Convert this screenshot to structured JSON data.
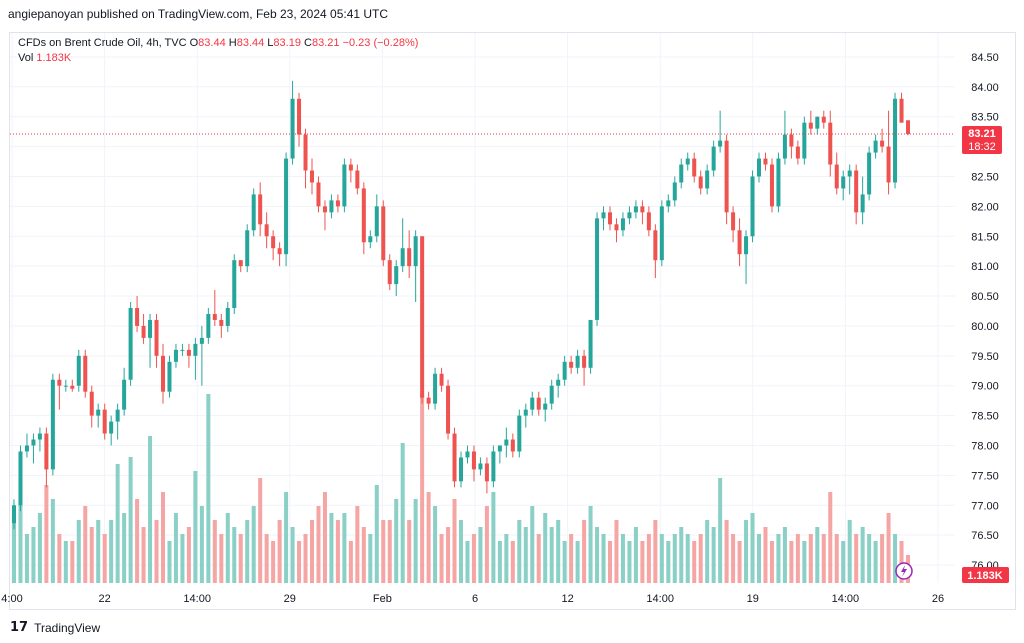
{
  "header": {
    "published_line": "angiepanoyan published on TradingView.com, Feb 23, 2024 05:41 UTC"
  },
  "legend": {
    "symbol": "CFDs on Brent Crude Oil, 4h, TVC",
    "o_label": "O",
    "o_value": "83.44",
    "h_label": "H",
    "h_value": "83.44",
    "l_label": "L",
    "l_value": "83.19",
    "c_label": "C",
    "c_value": "83.21",
    "change": "−0.23 (−0.28%)",
    "vol_label": "Vol",
    "vol_value": "1.183K"
  },
  "price_badge": {
    "price": "83.21",
    "countdown": "18:32"
  },
  "volume_badge": "1.183K",
  "footer": {
    "brand": "TradingView",
    "logo_text": "17"
  },
  "colors": {
    "up": "#26a69a",
    "down": "#ef5350",
    "volume_up": "#8ad0c6",
    "volume_down": "#f5a5a3",
    "badge": "#f23645",
    "lightning": "#9c27b0"
  },
  "chart_data": {
    "type": "candlestick",
    "title": "CFDs on Brent Crude Oil, 4h, TVC",
    "y_ticks": [
      "84.50",
      "84.00",
      "83.50",
      "83.00",
      "82.50",
      "82.00",
      "81.50",
      "81.00",
      "80.50",
      "80.00",
      "79.50",
      "79.00",
      "78.50",
      "78.00",
      "77.50",
      "77.00",
      "76.50",
      "76.00"
    ],
    "ylim": [
      75.7,
      84.9
    ],
    "x_ticks": [
      "4:00",
      "22",
      "14:00",
      "29",
      "Feb",
      "6",
      "12",
      "14:00",
      "19",
      "14:00",
      "26"
    ],
    "last_price": 83.21,
    "candles": [
      [
        76.7,
        77.1,
        76.6,
        77.0,
        0.45
      ],
      [
        77.0,
        78.0,
        76.9,
        77.9,
        0.75
      ],
      [
        77.9,
        78.2,
        77.8,
        78.0,
        0.35
      ],
      [
        78.0,
        78.2,
        77.7,
        78.1,
        0.4
      ],
      [
        78.1,
        78.3,
        77.9,
        78.2,
        0.5
      ],
      [
        78.2,
        78.3,
        77.3,
        77.6,
        0.7
      ],
      [
        77.6,
        79.2,
        77.5,
        79.1,
        0.6
      ],
      [
        79.1,
        79.2,
        78.6,
        79.0,
        0.35
      ],
      [
        79.0,
        79.1,
        78.9,
        79.0,
        0.3
      ],
      [
        79.0,
        79.1,
        78.9,
        78.95,
        0.3
      ],
      [
        79.0,
        79.6,
        78.9,
        79.5,
        0.45
      ],
      [
        79.5,
        79.6,
        78.8,
        78.9,
        0.55
      ],
      [
        78.9,
        79.0,
        78.3,
        78.5,
        0.4
      ],
      [
        78.5,
        78.7,
        78.3,
        78.6,
        0.45
      ],
      [
        78.6,
        78.7,
        78.1,
        78.2,
        0.35
      ],
      [
        78.2,
        78.5,
        78.0,
        78.4,
        0.45
      ],
      [
        78.4,
        78.7,
        78.1,
        78.6,
        0.85
      ],
      [
        78.6,
        79.3,
        78.5,
        79.1,
        0.5
      ],
      [
        79.1,
        80.4,
        79.0,
        80.3,
        0.9
      ],
      [
        80.3,
        80.5,
        79.9,
        80.0,
        0.6
      ],
      [
        80.0,
        80.2,
        79.7,
        79.8,
        0.4
      ],
      [
        79.8,
        80.2,
        79.3,
        80.1,
        1.05
      ],
      [
        80.1,
        80.2,
        79.3,
        79.5,
        0.45
      ],
      [
        79.5,
        79.7,
        78.7,
        78.9,
        0.65
      ],
      [
        78.9,
        79.5,
        78.8,
        79.4,
        0.3
      ],
      [
        79.4,
        79.7,
        79.3,
        79.6,
        0.5
      ],
      [
        79.6,
        79.7,
        79.5,
        79.6,
        0.35
      ],
      [
        79.6,
        79.7,
        79.3,
        79.5,
        0.4
      ],
      [
        79.5,
        79.8,
        79.1,
        79.7,
        0.8
      ],
      [
        79.7,
        80.0,
        79.0,
        79.8,
        0.55
      ],
      [
        79.8,
        80.3,
        79.7,
        80.2,
        1.35
      ],
      [
        80.2,
        80.6,
        80.0,
        80.1,
        0.45
      ],
      [
        80.1,
        80.2,
        79.8,
        80.0,
        0.35
      ],
      [
        80.0,
        80.4,
        79.9,
        80.3,
        0.5
      ],
      [
        80.3,
        81.2,
        80.2,
        81.1,
        0.4
      ],
      [
        81.1,
        81.1,
        80.9,
        81.0,
        0.35
      ],
      [
        81.0,
        81.7,
        80.9,
        81.6,
        0.45
      ],
      [
        81.6,
        82.3,
        81.5,
        82.2,
        0.55
      ],
      [
        82.2,
        82.4,
        81.5,
        81.7,
        0.75
      ],
      [
        81.7,
        81.9,
        81.3,
        81.5,
        0.35
      ],
      [
        81.5,
        81.6,
        81.1,
        81.3,
        0.3
      ],
      [
        81.3,
        81.4,
        81.0,
        81.2,
        0.45
      ],
      [
        81.2,
        82.9,
        81.0,
        82.8,
        0.65
      ],
      [
        82.8,
        84.1,
        82.7,
        83.8,
        0.4
      ],
      [
        83.8,
        83.9,
        83.0,
        83.2,
        0.3
      ],
      [
        83.2,
        83.3,
        82.3,
        82.6,
        0.35
      ],
      [
        82.6,
        82.8,
        82.2,
        82.4,
        0.45
      ],
      [
        82.4,
        82.5,
        81.9,
        82.0,
        0.55
      ],
      [
        82.0,
        82.1,
        81.6,
        81.9,
        0.65
      ],
      [
        81.9,
        82.2,
        81.8,
        82.1,
        0.5
      ],
      [
        82.1,
        82.2,
        81.9,
        82.0,
        0.45
      ],
      [
        82.0,
        82.8,
        81.9,
        82.7,
        0.5
      ],
      [
        82.7,
        82.8,
        82.4,
        82.6,
        0.3
      ],
      [
        82.6,
        82.7,
        82.2,
        82.3,
        0.55
      ],
      [
        82.3,
        82.4,
        81.2,
        81.4,
        0.4
      ],
      [
        81.4,
        81.6,
        81.3,
        81.5,
        0.35
      ],
      [
        81.5,
        82.2,
        81.4,
        82.0,
        0.7
      ],
      [
        82.0,
        82.1,
        81.0,
        81.1,
        0.45
      ],
      [
        81.1,
        81.2,
        80.6,
        80.7,
        0.45
      ],
      [
        80.7,
        81.1,
        80.5,
        81.0,
        0.6
      ],
      [
        81.0,
        81.8,
        80.9,
        81.3,
        1.0
      ],
      [
        81.3,
        81.6,
        80.8,
        81.0,
        0.45
      ],
      [
        81.0,
        81.6,
        80.4,
        81.5,
        0.6
      ],
      [
        81.5,
        81.5,
        78.7,
        78.8,
        1.35
      ],
      [
        78.8,
        78.9,
        78.6,
        78.7,
        0.65
      ],
      [
        78.7,
        79.3,
        78.6,
        79.2,
        0.55
      ],
      [
        79.2,
        79.3,
        78.9,
        79.0,
        0.35
      ],
      [
        79.0,
        79.1,
        78.1,
        78.2,
        0.4
      ],
      [
        78.2,
        78.3,
        77.3,
        77.4,
        0.6
      ],
      [
        77.4,
        77.9,
        77.3,
        77.8,
        0.45
      ],
      [
        77.8,
        78.0,
        77.7,
        77.9,
        0.3
      ],
      [
        77.9,
        78.0,
        77.4,
        77.6,
        0.35
      ],
      [
        77.6,
        77.8,
        77.5,
        77.7,
        0.4
      ],
      [
        77.7,
        77.8,
        77.2,
        77.4,
        0.55
      ],
      [
        77.4,
        78.0,
        77.3,
        77.9,
        0.65
      ],
      [
        77.9,
        78.0,
        77.7,
        78.0,
        0.3
      ],
      [
        78.0,
        78.3,
        77.8,
        78.1,
        0.35
      ],
      [
        78.1,
        78.2,
        77.8,
        77.9,
        0.3
      ],
      [
        77.9,
        78.6,
        77.8,
        78.5,
        0.45
      ],
      [
        78.5,
        78.7,
        78.3,
        78.6,
        0.4
      ],
      [
        78.6,
        78.9,
        78.5,
        78.8,
        0.55
      ],
      [
        78.8,
        78.9,
        78.5,
        78.6,
        0.35
      ],
      [
        78.6,
        78.8,
        78.4,
        78.7,
        0.5
      ],
      [
        78.7,
        79.1,
        78.6,
        79.0,
        0.4
      ],
      [
        79.0,
        79.2,
        78.8,
        79.1,
        0.45
      ],
      [
        79.1,
        79.5,
        79.0,
        79.4,
        0.3
      ],
      [
        79.4,
        79.5,
        79.2,
        79.3,
        0.35
      ],
      [
        79.3,
        79.6,
        79.2,
        79.5,
        0.3
      ],
      [
        79.5,
        79.6,
        79.0,
        79.3,
        0.45
      ],
      [
        79.3,
        80.1,
        79.2,
        80.1,
        0.55
      ],
      [
        80.1,
        81.9,
        80.0,
        81.8,
        0.4
      ],
      [
        81.8,
        82.0,
        81.6,
        81.9,
        0.35
      ],
      [
        81.9,
        82.0,
        81.6,
        81.7,
        0.3
      ],
      [
        81.7,
        81.8,
        81.4,
        81.6,
        0.45
      ],
      [
        81.6,
        81.9,
        81.5,
        81.8,
        0.35
      ],
      [
        81.8,
        82.0,
        81.7,
        81.9,
        0.3
      ],
      [
        81.9,
        82.1,
        81.8,
        82.0,
        0.4
      ],
      [
        82.0,
        82.1,
        81.7,
        81.9,
        0.3
      ],
      [
        81.9,
        82.0,
        81.5,
        81.6,
        0.35
      ],
      [
        81.6,
        81.7,
        80.8,
        81.1,
        0.45
      ],
      [
        81.1,
        82.1,
        81.0,
        82.0,
        0.35
      ],
      [
        82.0,
        82.2,
        81.9,
        82.1,
        0.3
      ],
      [
        82.1,
        82.5,
        82.0,
        82.4,
        0.35
      ],
      [
        82.4,
        82.8,
        82.3,
        82.7,
        0.4
      ],
      [
        82.7,
        82.9,
        82.6,
        82.8,
        0.35
      ],
      [
        82.8,
        82.9,
        82.4,
        82.5,
        0.3
      ],
      [
        82.5,
        82.6,
        82.2,
        82.3,
        0.35
      ],
      [
        82.3,
        82.7,
        82.2,
        82.6,
        0.45
      ],
      [
        82.6,
        83.1,
        82.5,
        83.0,
        0.4
      ],
      [
        83.0,
        83.6,
        82.9,
        83.1,
        0.75
      ],
      [
        83.1,
        83.2,
        81.7,
        81.9,
        0.45
      ],
      [
        81.9,
        82.0,
        81.4,
        81.6,
        0.35
      ],
      [
        81.6,
        81.8,
        81.0,
        81.2,
        0.3
      ],
      [
        81.2,
        81.6,
        80.7,
        81.5,
        0.45
      ],
      [
        81.5,
        82.6,
        81.4,
        82.5,
        0.5
      ],
      [
        82.5,
        82.9,
        82.4,
        82.8,
        0.35
      ],
      [
        82.8,
        82.9,
        82.6,
        82.7,
        0.4
      ],
      [
        82.7,
        82.8,
        81.9,
        82.0,
        0.3
      ],
      [
        82.0,
        82.9,
        81.9,
        82.8,
        0.35
      ],
      [
        82.8,
        83.6,
        82.7,
        83.2,
        0.4
      ],
      [
        83.2,
        83.3,
        82.8,
        83.0,
        0.3
      ],
      [
        83.0,
        83.1,
        82.7,
        82.8,
        0.35
      ],
      [
        82.8,
        83.5,
        82.7,
        83.4,
        0.3
      ],
      [
        83.4,
        83.6,
        83.2,
        83.3,
        0.35
      ],
      [
        83.3,
        83.5,
        83.2,
        83.5,
        0.4
      ],
      [
        83.5,
        83.6,
        83.3,
        83.4,
        0.35
      ],
      [
        83.4,
        83.6,
        82.5,
        82.7,
        0.65
      ],
      [
        82.7,
        82.9,
        82.2,
        82.3,
        0.35
      ],
      [
        82.3,
        82.6,
        82.1,
        82.5,
        0.3
      ],
      [
        82.5,
        82.7,
        82.2,
        82.6,
        0.45
      ],
      [
        82.6,
        82.7,
        81.7,
        81.9,
        0.35
      ],
      [
        81.9,
        82.5,
        81.7,
        82.2,
        0.4
      ],
      [
        82.2,
        83.0,
        82.1,
        82.9,
        0.35
      ],
      [
        82.9,
        83.2,
        82.8,
        83.1,
        0.3
      ],
      [
        83.1,
        83.3,
        82.9,
        83.0,
        0.35
      ],
      [
        83.0,
        83.6,
        82.2,
        82.4,
        0.5
      ],
      [
        82.4,
        83.9,
        82.3,
        83.8,
        0.35
      ],
      [
        83.8,
        83.9,
        83.4,
        83.4,
        0.3
      ],
      [
        83.44,
        83.44,
        83.19,
        83.21,
        0.2
      ]
    ]
  }
}
